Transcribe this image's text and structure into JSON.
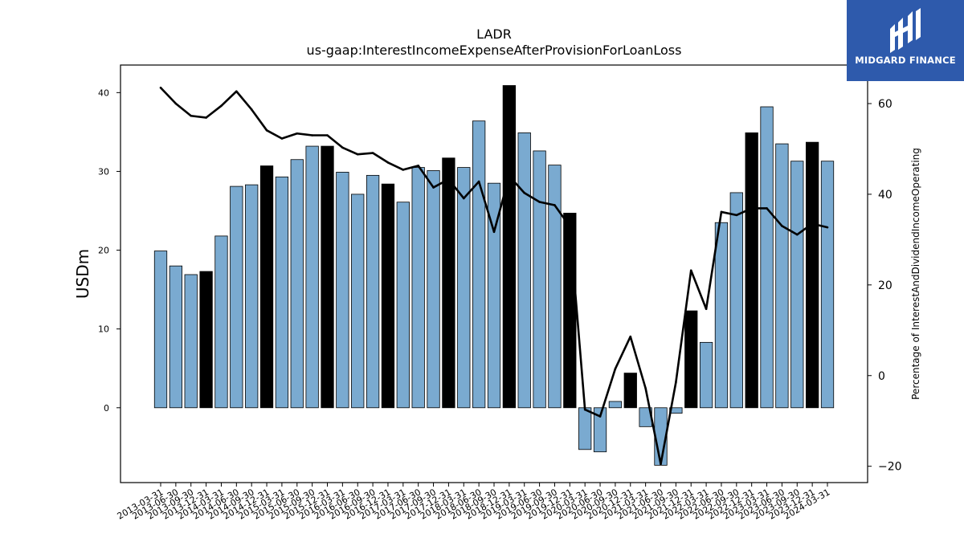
{
  "logo": {
    "text": "MIDGARD FINANCE"
  },
  "colors": {
    "bar_normal": "#7aaad0",
    "bar_highlight": "#000000",
    "line": "#000000",
    "logo_bg": "#2e5aac"
  },
  "chart_data": {
    "type": "bar",
    "title": "LADR",
    "subtitle": "us-gaap:InterestIncomeExpenseAfterProvisionForLoanLoss",
    "ylabel": "USDm",
    "y2label": "Percentage of InterestAndDividendIncomeOperating",
    "ylim": [
      -9.5,
      43.5
    ],
    "y2lim": [
      -23.6,
      68.5
    ],
    "yticks": [
      0,
      10,
      20,
      30,
      40
    ],
    "y2ticks": [
      -20,
      0,
      20,
      40,
      60
    ],
    "grid": false,
    "categories": [
      "2013-03-31",
      "2013-06-30",
      "2013-09-30",
      "2013-12-31",
      "2014-03-31",
      "2014-06-30",
      "2014-09-30",
      "2014-12-31",
      "2015-03-31",
      "2015-06-30",
      "2015-09-30",
      "2015-12-31",
      "2016-03-31",
      "2016-06-30",
      "2016-09-30",
      "2016-12-31",
      "2017-03-31",
      "2017-06-30",
      "2017-09-30",
      "2017-12-31",
      "2018-03-31",
      "2018-06-30",
      "2018-09-30",
      "2018-12-31",
      "2019-03-31",
      "2019-06-30",
      "2019-09-30",
      "2019-12-31",
      "2020-03-31",
      "2020-06-30",
      "2020-09-30",
      "2020-12-31",
      "2021-03-31",
      "2021-06-30",
      "2021-09-30",
      "2021-12-31",
      "2022-03-31",
      "2022-06-30",
      "2022-09-30",
      "2022-12-31",
      "2023-03-31",
      "2023-06-30",
      "2023-09-30",
      "2023-12-31",
      "2024-03-31"
    ],
    "series": [
      {
        "values": [
          19.9,
          18.0,
          16.9,
          17.3,
          21.8,
          28.1,
          28.3,
          30.7,
          29.3,
          31.5,
          33.2,
          33.2,
          29.9,
          27.1,
          29.5,
          28.4,
          26.1,
          30.5,
          30.1,
          31.7,
          30.5,
          36.4,
          28.5,
          40.9,
          34.9,
          32.6,
          30.8,
          24.7,
          -5.3,
          -5.6,
          0.8,
          4.4,
          -2.4,
          -7.3,
          -0.7,
          12.3,
          8.3,
          23.5,
          27.3,
          34.9,
          38.2,
          33.5,
          31.3,
          33.7,
          31.3
        ],
        "highlight": [
          false,
          false,
          false,
          true,
          false,
          false,
          false,
          true,
          false,
          false,
          false,
          true,
          false,
          false,
          false,
          true,
          false,
          false,
          false,
          true,
          false,
          false,
          false,
          true,
          false,
          false,
          false,
          true,
          false,
          false,
          false,
          true,
          false,
          false,
          false,
          true,
          false,
          false,
          false,
          true,
          false,
          false,
          false,
          true,
          false
        ]
      },
      {
        "axis": "right",
        "type": "line",
        "values": [
          63.5,
          60.0,
          57.3,
          56.9,
          59.5,
          62.7,
          58.7,
          54.1,
          52.3,
          53.4,
          53.0,
          53.0,
          50.3,
          48.8,
          49.1,
          47.0,
          45.4,
          46.3,
          41.5,
          43.3,
          39.1,
          42.8,
          31.7,
          44.0,
          40.3,
          38.3,
          37.6,
          32.9,
          -7.5,
          -9.0,
          1.5,
          8.6,
          -2.8,
          -19.5,
          -1.5,
          23.2,
          14.7,
          36.1,
          35.4,
          36.9,
          36.9,
          33.0,
          31.1,
          33.5,
          32.7
        ]
      }
    ]
  }
}
